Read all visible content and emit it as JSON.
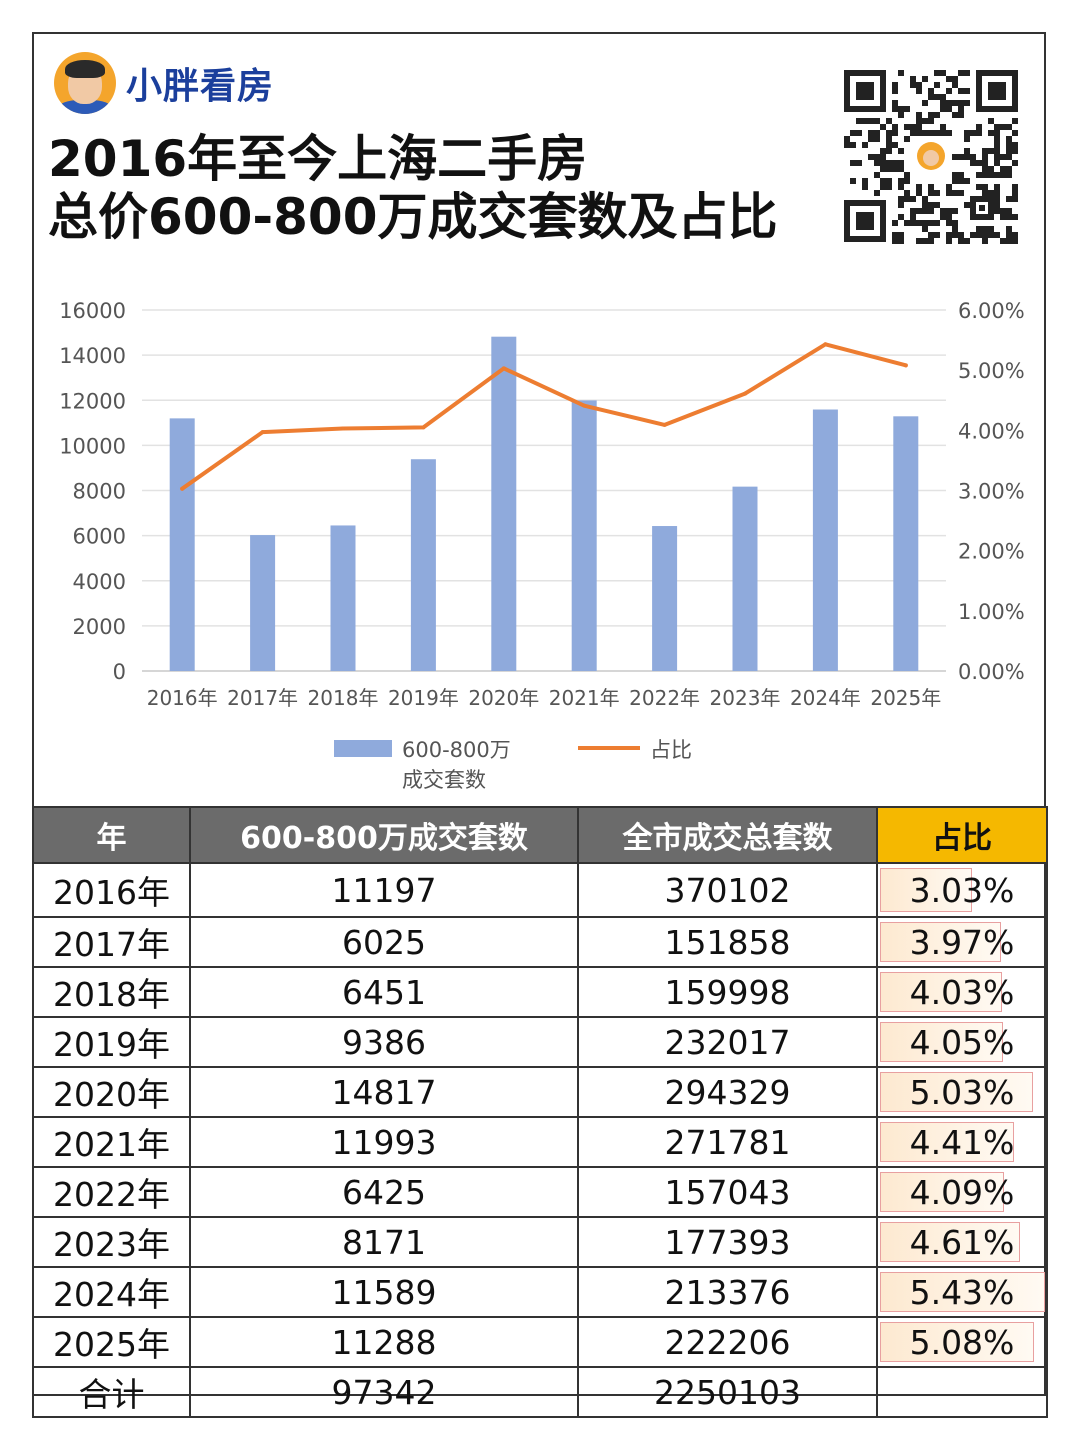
{
  "brand": {
    "name": "小胖看房",
    "avatar_icon": "cartoon-avatar-icon",
    "qr_icon": "qr-code-icon"
  },
  "title": {
    "line1": "2016年至今上海二手房",
    "line2": "总价600-800万成交套数及占比"
  },
  "colors": {
    "bar": "#8faadc",
    "line": "#ed7d31",
    "header": "#6b6b6b",
    "highlight": "#f5b800"
  },
  "chart_data": {
    "type": "bar",
    "categories": [
      "2016年",
      "2017年",
      "2018年",
      "2019年",
      "2020年",
      "2021年",
      "2022年",
      "2023年",
      "2024年",
      "2025年"
    ],
    "series": [
      {
        "name": "600-800万成交套数",
        "type": "bar",
        "axis": "left",
        "values": [
          11197,
          6025,
          6451,
          9386,
          14817,
          11993,
          6425,
          8171,
          11589,
          11288
        ]
      },
      {
        "name": "占比",
        "type": "line",
        "axis": "right",
        "values": [
          3.03,
          3.97,
          4.03,
          4.05,
          5.03,
          4.41,
          4.09,
          4.61,
          5.43,
          5.08
        ]
      }
    ],
    "y_left": {
      "min": 0,
      "max": 16000,
      "ticks": [
        "0",
        "2000",
        "4000",
        "6000",
        "8000",
        "10000",
        "12000",
        "14000",
        "16000"
      ]
    },
    "y_right": {
      "min": 0,
      "max": 6,
      "ticks": [
        "0.00%",
        "1.00%",
        "2.00%",
        "3.00%",
        "4.00%",
        "5.00%",
        "6.00%"
      ]
    },
    "grid": true,
    "legend": {
      "position": "bottom",
      "bar_label_1": "600-800万",
      "bar_label_2": "成交套数",
      "line_label": "占比"
    }
  },
  "table": {
    "headers": [
      "年",
      "600-800万成交套数",
      "全市成交总套数",
      "占比"
    ],
    "rows": [
      {
        "year": "2016年",
        "count": "11197",
        "total": "370102",
        "pct": "3.03%",
        "pct_value": 3.03
      },
      {
        "year": "2017年",
        "count": "6025",
        "total": "151858",
        "pct": "3.97%",
        "pct_value": 3.97
      },
      {
        "year": "2018年",
        "count": "6451",
        "total": "159998",
        "pct": "4.03%",
        "pct_value": 4.03
      },
      {
        "year": "2019年",
        "count": "9386",
        "total": "232017",
        "pct": "4.05%",
        "pct_value": 4.05
      },
      {
        "year": "2020年",
        "count": "14817",
        "total": "294329",
        "pct": "5.03%",
        "pct_value": 5.03
      },
      {
        "year": "2021年",
        "count": "11993",
        "total": "271781",
        "pct": "4.41%",
        "pct_value": 4.41
      },
      {
        "year": "2022年",
        "count": "6425",
        "total": "157043",
        "pct": "4.09%",
        "pct_value": 4.09
      },
      {
        "year": "2023年",
        "count": "8171",
        "total": "177393",
        "pct": "4.61%",
        "pct_value": 4.61
      },
      {
        "year": "2024年",
        "count": "11589",
        "total": "213376",
        "pct": "5.43%",
        "pct_value": 5.43
      },
      {
        "year": "2025年",
        "count": "11288",
        "total": "222206",
        "pct": "5.08%",
        "pct_value": 5.08
      }
    ],
    "total_row": {
      "label": "合计",
      "count": "97342",
      "total": "2250103",
      "pct": ""
    }
  }
}
